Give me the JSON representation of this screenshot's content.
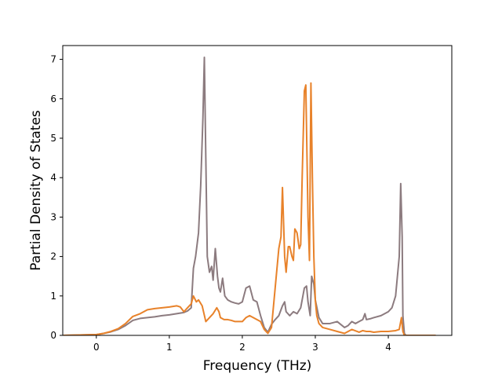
{
  "chart_data": {
    "type": "line",
    "title": "",
    "xlabel": "Frequency (THz)",
    "ylabel": "Partial Density of States",
    "xlim": [
      -0.46,
      4.87
    ],
    "ylim": [
      0,
      7.35
    ],
    "xticks": [
      0,
      1,
      2,
      3,
      4
    ],
    "yticks": [
      0,
      1,
      2,
      3,
      4,
      5,
      6,
      7
    ],
    "grid": false,
    "legend": "none",
    "series": [
      {
        "color": "#8c7b7f",
        "x": [
          -0.45,
          0.0,
          0.1,
          0.2,
          0.3,
          0.4,
          0.5,
          0.6,
          0.7,
          0.8,
          0.9,
          1.0,
          1.1,
          1.2,
          1.25,
          1.3,
          1.33,
          1.36,
          1.4,
          1.43,
          1.46,
          1.48,
          1.5,
          1.52,
          1.55,
          1.58,
          1.6,
          1.63,
          1.66,
          1.68,
          1.7,
          1.73,
          1.76,
          1.8,
          1.85,
          1.9,
          1.95,
          2.0,
          2.05,
          2.1,
          2.15,
          2.2,
          2.25,
          2.3,
          2.35,
          2.4,
          2.45,
          2.5,
          2.55,
          2.58,
          2.6,
          2.65,
          2.7,
          2.75,
          2.8,
          2.85,
          2.88,
          2.9,
          2.93,
          2.95,
          2.98,
          3.0,
          3.05,
          3.1,
          3.2,
          3.3,
          3.4,
          3.45,
          3.5,
          3.55,
          3.6,
          3.65,
          3.68,
          3.7,
          3.75,
          3.8,
          3.9,
          4.0,
          4.05,
          4.1,
          4.15,
          4.17,
          4.19,
          4.2,
          4.22,
          4.24,
          4.3,
          4.65
        ],
        "values": [
          0,
          0.02,
          0.05,
          0.09,
          0.15,
          0.25,
          0.38,
          0.43,
          0.45,
          0.47,
          0.5,
          0.52,
          0.55,
          0.58,
          0.62,
          0.7,
          1.7,
          2.0,
          2.6,
          3.8,
          5.5,
          7.05,
          4.5,
          2.0,
          1.6,
          1.75,
          1.4,
          2.2,
          1.5,
          1.2,
          1.1,
          1.45,
          1.0,
          0.9,
          0.85,
          0.82,
          0.8,
          0.85,
          1.2,
          1.25,
          0.9,
          0.85,
          0.5,
          0.2,
          0.08,
          0.28,
          0.4,
          0.5,
          0.75,
          0.85,
          0.6,
          0.5,
          0.6,
          0.55,
          0.7,
          1.2,
          1.25,
          0.85,
          0.5,
          1.5,
          1.3,
          0.9,
          0.45,
          0.3,
          0.3,
          0.35,
          0.2,
          0.25,
          0.35,
          0.3,
          0.35,
          0.4,
          0.55,
          0.4,
          0.42,
          0.45,
          0.5,
          0.6,
          0.7,
          1.0,
          2.0,
          3.85,
          2.5,
          0.5,
          0.05,
          0,
          0,
          0
        ]
      },
      {
        "color": "#e8822a",
        "x": [
          -0.45,
          0.0,
          0.1,
          0.2,
          0.3,
          0.4,
          0.5,
          0.6,
          0.7,
          0.8,
          0.9,
          1.0,
          1.1,
          1.15,
          1.2,
          1.25,
          1.3,
          1.33,
          1.37,
          1.4,
          1.45,
          1.5,
          1.55,
          1.6,
          1.65,
          1.68,
          1.7,
          1.75,
          1.8,
          1.85,
          1.9,
          1.95,
          2.0,
          2.05,
          2.1,
          2.15,
          2.2,
          2.25,
          2.3,
          2.35,
          2.4,
          2.45,
          2.5,
          2.53,
          2.55,
          2.58,
          2.6,
          2.63,
          2.65,
          2.68,
          2.7,
          2.72,
          2.75,
          2.78,
          2.8,
          2.82,
          2.85,
          2.87,
          2.9,
          2.92,
          2.94,
          2.96,
          2.98,
          3.0,
          3.02,
          3.05,
          3.1,
          3.2,
          3.3,
          3.4,
          3.5,
          3.6,
          3.65,
          3.7,
          3.75,
          3.8,
          3.9,
          4.0,
          4.1,
          4.15,
          4.18,
          4.2,
          4.22,
          4.3,
          4.65
        ],
        "values": [
          0,
          0.02,
          0.05,
          0.1,
          0.17,
          0.3,
          0.48,
          0.55,
          0.65,
          0.68,
          0.7,
          0.72,
          0.75,
          0.72,
          0.6,
          0.7,
          0.8,
          1.0,
          0.85,
          0.9,
          0.75,
          0.35,
          0.45,
          0.55,
          0.7,
          0.6,
          0.45,
          0.4,
          0.4,
          0.38,
          0.35,
          0.35,
          0.35,
          0.45,
          0.5,
          0.45,
          0.4,
          0.35,
          0.15,
          0.05,
          0.2,
          1.2,
          2.2,
          2.5,
          3.75,
          2.0,
          1.6,
          2.25,
          2.25,
          2.0,
          1.9,
          2.7,
          2.6,
          2.2,
          2.3,
          4.0,
          6.2,
          6.35,
          3.0,
          1.9,
          6.4,
          4.0,
          2.0,
          0.9,
          0.5,
          0.3,
          0.2,
          0.15,
          0.1,
          0.05,
          0.15,
          0.08,
          0.12,
          0.1,
          0.1,
          0.08,
          0.1,
          0.1,
          0.12,
          0.15,
          0.45,
          0.1,
          0,
          0,
          0
        ]
      }
    ]
  }
}
